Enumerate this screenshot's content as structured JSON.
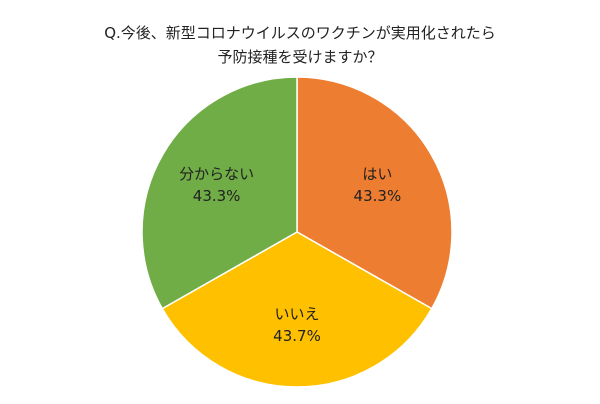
{
  "chart_data": {
    "type": "pie",
    "title": [
      "Q.今後、新型コロナウイルスのワクチンが実用化されたら",
      "予防接種を受けますか？"
    ],
    "categories": [
      "はい",
      "いいえ",
      "分からない"
    ],
    "values": [
      43.3,
      43.7,
      43.3
    ],
    "value_labels": [
      "43.3%",
      "43.7%",
      "43.3%"
    ],
    "colors": [
      "#ed7d31",
      "#ffc000",
      "#70ad47"
    ]
  }
}
